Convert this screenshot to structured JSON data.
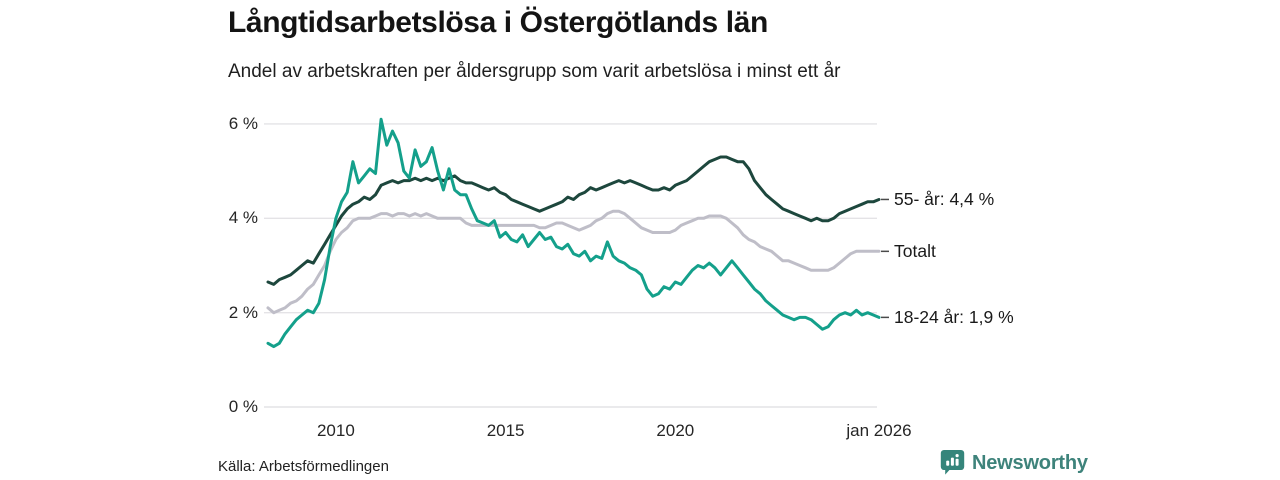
{
  "header": {
    "title": "Långtidsarbetslösa i Östergötlands län",
    "subtitle": "Andel av arbetskraften per åldersgrupp som varit arbetslösa i minst ett år"
  },
  "footer": {
    "source": "Källa: Arbetsförmedlingen",
    "brand": "Newsworthy"
  },
  "colors": {
    "grid": "#e4e3e6",
    "tick_dash": "#4a4a4a",
    "text": "#1a1a1a",
    "brand_teal": "#35857b"
  },
  "chart_data": {
    "type": "line",
    "title": "Långtidsarbetslösa i Östergötlands län",
    "subtitle": "Andel av arbetskraften per åldersgrupp som varit arbetslösa i minst ett år",
    "grid": true,
    "legend_position": "right-end-labels",
    "x_range_years": [
      2008,
      2026
    ],
    "x_step_years": 0.1667,
    "ylim": [
      0,
      6.3
    ],
    "y_unit": "%",
    "x_axis": {
      "ticks": [
        {
          "label": "2010",
          "year": 2010
        },
        {
          "label": "2015",
          "year": 2015
        },
        {
          "label": "2020",
          "year": 2020
        },
        {
          "label": "jan 2026",
          "year": 2026
        }
      ]
    },
    "y_axis": {
      "ticks": [
        {
          "label": "0 %",
          "value": 0
        },
        {
          "label": "2 %",
          "value": 2
        },
        {
          "label": "4 %",
          "value": 4
        },
        {
          "label": "6 %",
          "value": 6
        }
      ]
    },
    "series": [
      {
        "name": "Totalt",
        "end_label": "Totalt",
        "color": "#bfbec8",
        "last_value": 3.3,
        "values": [
          2.1,
          2.0,
          2.05,
          2.1,
          2.2,
          2.25,
          2.35,
          2.5,
          2.6,
          2.8,
          3.0,
          3.3,
          3.55,
          3.7,
          3.8,
          3.95,
          4.0,
          4.0,
          4.0,
          4.05,
          4.1,
          4.1,
          4.05,
          4.1,
          4.1,
          4.05,
          4.1,
          4.05,
          4.1,
          4.05,
          4.0,
          4.0,
          4.0,
          4.0,
          4.0,
          3.9,
          3.85,
          3.85,
          3.85,
          3.85,
          3.85,
          3.85,
          3.85,
          3.85,
          3.85,
          3.85,
          3.85,
          3.85,
          3.8,
          3.8,
          3.85,
          3.9,
          3.9,
          3.85,
          3.8,
          3.75,
          3.8,
          3.85,
          3.95,
          4.0,
          4.1,
          4.15,
          4.15,
          4.1,
          4.0,
          3.9,
          3.8,
          3.75,
          3.7,
          3.7,
          3.7,
          3.7,
          3.75,
          3.85,
          3.9,
          3.95,
          4.0,
          4.0,
          4.05,
          4.05,
          4.05,
          4.0,
          3.9,
          3.8,
          3.65,
          3.55,
          3.5,
          3.4,
          3.35,
          3.3,
          3.2,
          3.1,
          3.1,
          3.05,
          3.0,
          2.95,
          2.9,
          2.9,
          2.9,
          2.9,
          2.95,
          3.05,
          3.15,
          3.25,
          3.3,
          3.3,
          3.3,
          3.3,
          3.3
        ]
      },
      {
        "name": "55- år",
        "end_label": "55- år: 4,4 %",
        "color": "#1d473d",
        "last_value": 4.4,
        "values": [
          2.65,
          2.6,
          2.7,
          2.75,
          2.8,
          2.9,
          3.0,
          3.1,
          3.05,
          3.25,
          3.45,
          3.65,
          3.85,
          4.05,
          4.2,
          4.3,
          4.35,
          4.45,
          4.4,
          4.5,
          4.7,
          4.75,
          4.8,
          4.75,
          4.8,
          4.8,
          4.85,
          4.8,
          4.85,
          4.8,
          4.85,
          4.8,
          4.85,
          4.9,
          4.8,
          4.75,
          4.75,
          4.7,
          4.65,
          4.6,
          4.65,
          4.55,
          4.5,
          4.4,
          4.35,
          4.3,
          4.25,
          4.2,
          4.15,
          4.2,
          4.25,
          4.3,
          4.35,
          4.45,
          4.4,
          4.5,
          4.55,
          4.65,
          4.6,
          4.65,
          4.7,
          4.75,
          4.8,
          4.75,
          4.8,
          4.75,
          4.7,
          4.65,
          4.6,
          4.6,
          4.65,
          4.6,
          4.7,
          4.75,
          4.8,
          4.9,
          5.0,
          5.1,
          5.2,
          5.25,
          5.3,
          5.3,
          5.25,
          5.2,
          5.2,
          5.05,
          4.8,
          4.65,
          4.5,
          4.4,
          4.3,
          4.2,
          4.15,
          4.1,
          4.05,
          4.0,
          3.95,
          4.0,
          3.95,
          3.95,
          4.0,
          4.1,
          4.15,
          4.2,
          4.25,
          4.3,
          4.35,
          4.35,
          4.4
        ]
      },
      {
        "name": "18-24 år",
        "end_label": "18-24 år: 1,9 %",
        "color": "#14a08b",
        "last_value": 1.9,
        "values": [
          1.35,
          1.28,
          1.35,
          1.55,
          1.7,
          1.85,
          1.95,
          2.05,
          2.0,
          2.2,
          2.7,
          3.4,
          4.0,
          4.35,
          4.55,
          5.2,
          4.75,
          4.9,
          5.05,
          4.95,
          6.1,
          5.55,
          5.85,
          5.6,
          5.0,
          4.85,
          5.45,
          5.1,
          5.2,
          5.5,
          5.0,
          4.6,
          5.05,
          4.6,
          4.5,
          4.5,
          4.2,
          3.95,
          3.9,
          3.85,
          3.95,
          3.6,
          3.7,
          3.55,
          3.5,
          3.65,
          3.4,
          3.55,
          3.7,
          3.55,
          3.6,
          3.4,
          3.35,
          3.45,
          3.25,
          3.2,
          3.3,
          3.1,
          3.2,
          3.15,
          3.5,
          3.2,
          3.1,
          3.05,
          2.95,
          2.9,
          2.8,
          2.5,
          2.35,
          2.4,
          2.55,
          2.5,
          2.65,
          2.6,
          2.75,
          2.9,
          3.0,
          2.95,
          3.05,
          2.95,
          2.8,
          2.95,
          3.1,
          2.95,
          2.8,
          2.65,
          2.5,
          2.4,
          2.25,
          2.15,
          2.05,
          1.95,
          1.9,
          1.85,
          1.9,
          1.9,
          1.85,
          1.75,
          1.65,
          1.7,
          1.85,
          1.95,
          2.0,
          1.95,
          2.05,
          1.95,
          2.0,
          1.95,
          1.9
        ]
      }
    ]
  }
}
